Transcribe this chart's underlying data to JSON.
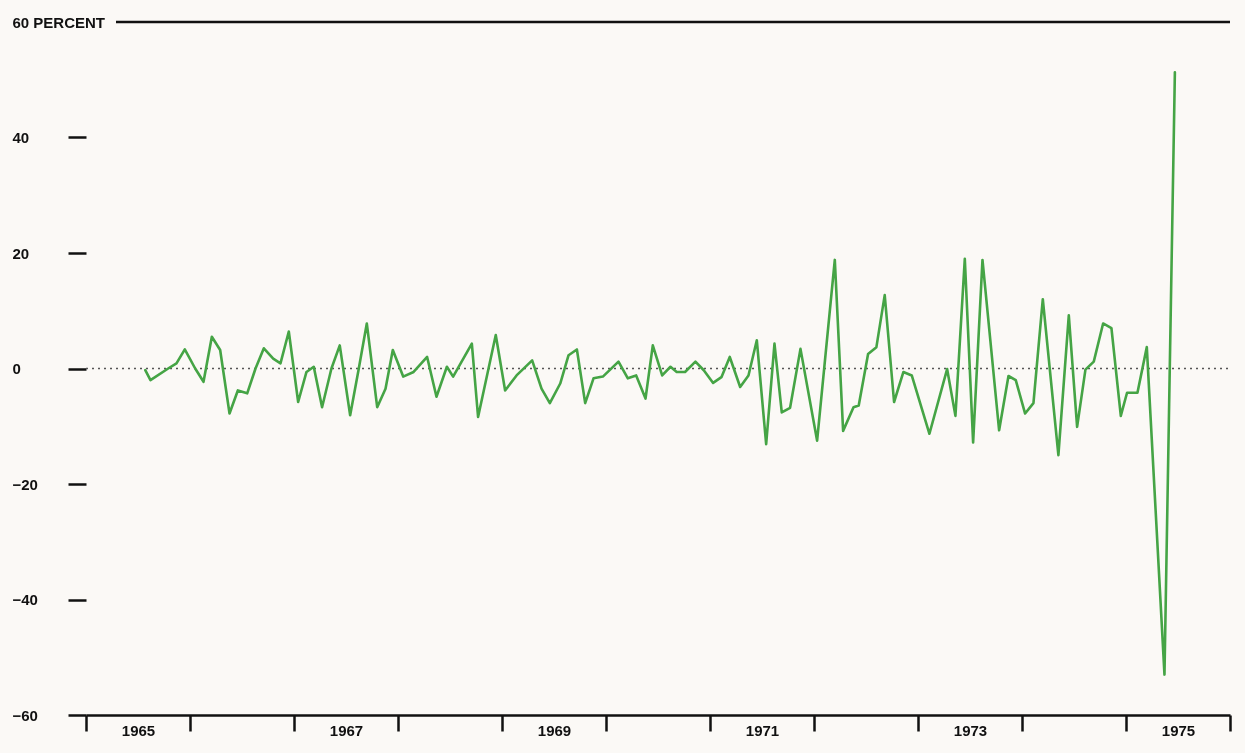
{
  "chart_data": {
    "type": "line",
    "x": [
      1965.57,
      1965.62,
      1965.79,
      1965.87,
      1965.95,
      1966.05,
      1966.13,
      1966.21,
      1966.29,
      1966.38,
      1966.46,
      1966.55,
      1966.63,
      1966.71,
      1966.8,
      1966.87,
      1966.95,
      1967.04,
      1967.12,
      1967.19,
      1967.27,
      1967.36,
      1967.44,
      1967.54,
      1967.62,
      1967.7,
      1967.8,
      1967.88,
      1967.95,
      1968.05,
      1968.15,
      1968.28,
      1968.37,
      1968.47,
      1968.53,
      1968.71,
      1968.77,
      1968.94,
      1969.03,
      1969.14,
      1969.29,
      1969.38,
      1969.46,
      1969.56,
      1969.64,
      1969.72,
      1969.8,
      1969.88,
      1969.97,
      1970.12,
      1970.21,
      1970.29,
      1970.38,
      1970.45,
      1970.54,
      1970.62,
      1970.68,
      1970.76,
      1970.86,
      1970.94,
      1971.03,
      1971.11,
      1971.19,
      1971.29,
      1971.37,
      1971.45,
      1971.54,
      1971.62,
      1971.69,
      1971.77,
      1971.87,
      1972.03,
      1972.2,
      1972.28,
      1972.38,
      1972.43,
      1972.52,
      1972.6,
      1972.68,
      1972.77,
      1972.86,
      1972.94,
      1973.11,
      1973.28,
      1973.36,
      1973.45,
      1973.53,
      1973.62,
      1973.78,
      1973.87,
      1973.94,
      1974.03,
      1974.11,
      1974.2,
      1974.35,
      1974.45,
      1974.53,
      1974.61,
      1974.69,
      1974.78,
      1974.86,
      1974.95,
      1975.01,
      1975.11,
      1975.2,
      1975.37,
      1975.47
    ],
    "series": [
      {
        "color": "#45a445",
        "line_style": "solid",
        "values": [
          -0.3,
          -2.0,
          0.0,
          0.9,
          3.3,
          0.0,
          -2.3,
          5.5,
          3.2,
          -7.8,
          -3.8,
          -4.3,
          0.0,
          3.5,
          1.7,
          0.9,
          6.4,
          -5.8,
          -0.6,
          0.3,
          -6.7,
          0.0,
          4.0,
          -8.1,
          -0.3,
          7.8,
          -6.7,
          -3.5,
          3.2,
          -1.4,
          -0.6,
          2.0,
          -4.9,
          0.3,
          -1.4,
          4.3,
          -8.4,
          5.8,
          -3.8,
          -1.2,
          1.4,
          -3.5,
          -6.0,
          -2.6,
          2.3,
          3.3,
          -6.0,
          -1.7,
          -1.4,
          1.2,
          -1.7,
          -1.2,
          -5.2,
          4.0,
          -1.2,
          0.3,
          -0.6,
          -0.6,
          1.2,
          -0.3,
          -2.5,
          -1.5,
          2.0,
          -3.2,
          -1.2,
          4.9,
          -13.1,
          4.3,
          -7.6,
          -6.8,
          3.4,
          -12.5,
          18.8,
          -10.8,
          -6.7,
          -6.4,
          2.5,
          3.7,
          12.7,
          -5.8,
          -0.6,
          -1.2,
          -11.3,
          -0.1,
          -8.2,
          19.0,
          -12.8,
          18.8,
          -10.7,
          -1.3,
          -2.0,
          -7.8,
          -6.0,
          12.0,
          -15.0,
          9.2,
          -10.1,
          -0.2,
          1.2,
          7.8,
          7.0,
          -8.2,
          -4.2,
          -4.2,
          3.7,
          -53.0,
          51.3
        ]
      }
    ],
    "xlim": [
      1965,
      1976
    ],
    "xticks": [
      {
        "value": 1965,
        "label": null
      },
      {
        "value": 1965.5,
        "label": "1965"
      },
      {
        "value": 1966,
        "label": null
      },
      {
        "value": 1967,
        "label": null
      },
      {
        "value": 1967.5,
        "label": "1967"
      },
      {
        "value": 1968,
        "label": null
      },
      {
        "value": 1969,
        "label": null
      },
      {
        "value": 1969.5,
        "label": "1969"
      },
      {
        "value": 1970,
        "label": null
      },
      {
        "value": 1971,
        "label": null
      },
      {
        "value": 1971.5,
        "label": "1971"
      },
      {
        "value": 1972,
        "label": null
      },
      {
        "value": 1973,
        "label": null
      },
      {
        "value": 1973.5,
        "label": "1973"
      },
      {
        "value": 1974,
        "label": null
      },
      {
        "value": 1975,
        "label": null
      },
      {
        "value": 1975.5,
        "label": "1975"
      },
      {
        "value": 1976,
        "label": null
      }
    ],
    "ylim": [
      -60,
      60
    ],
    "yticks": [
      {
        "value": 60,
        "label": "60 PERCENT"
      },
      40,
      20,
      0,
      -20,
      -40,
      -60
    ],
    "ref_lines": [
      {
        "axis": "y",
        "value": 0,
        "line_style": "dotted",
        "color": "#555555"
      },
      {
        "axis": "y",
        "value": 60,
        "line_style": "solid",
        "color": "#111111"
      }
    ]
  }
}
